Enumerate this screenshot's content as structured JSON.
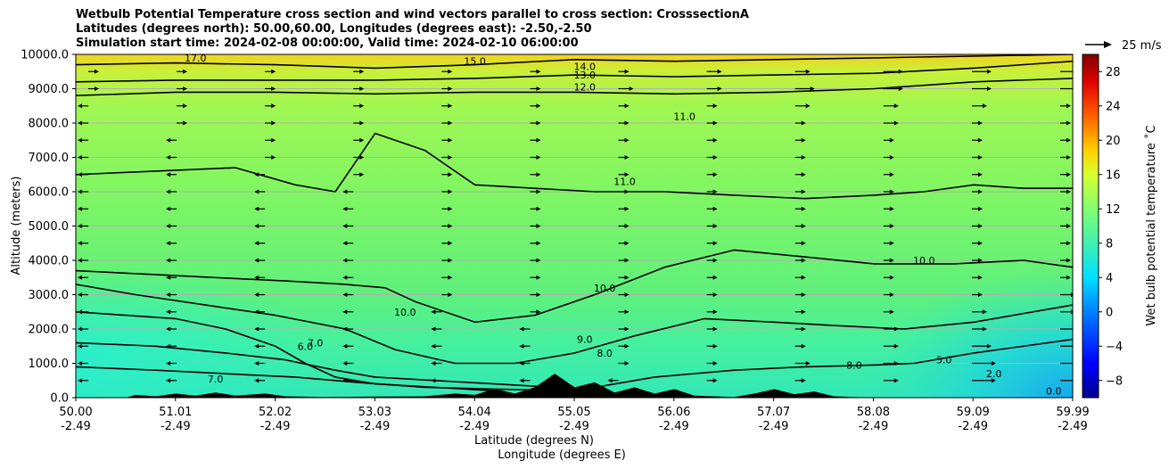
{
  "title": {
    "line1": "Wetbulb Potential Temperature cross section and wind vectors parallel to cross section: CrosssectionA",
    "line2": "Latitudes (degrees north): 50.00,60.00, Longitudes (degrees east): -2.50,-2.50",
    "line3": "Simulation start time: 2024-02-08 00:00:00, Valid time: 2024-02-10 06:00:00"
  },
  "quiver_key": "25 m/s",
  "colors": {
    "grid": "#b0b0b0",
    "contour": "#000000",
    "terrain": "#000000"
  },
  "chart_data": {
    "type": "heatmap",
    "ylabel": "Altitude (meters)",
    "xlabel_line1": "Latitude (degrees N)",
    "xlabel_line2": "Longitude (degrees E)",
    "ylim": [
      0,
      10000
    ],
    "xlim": [
      50.0,
      59.99
    ],
    "y_ticks": [
      "0.0",
      "1000.0",
      "2000.0",
      "3000.0",
      "4000.0",
      "5000.0",
      "6000.0",
      "7000.0",
      "8000.0",
      "9000.0",
      "10000.0"
    ],
    "x_ticks": [
      {
        "lat": "50.00",
        "lon": "-2.49"
      },
      {
        "lat": "51.01",
        "lon": "-2.49"
      },
      {
        "lat": "52.02",
        "lon": "-2.49"
      },
      {
        "lat": "53.03",
        "lon": "-2.49"
      },
      {
        "lat": "54.04",
        "lon": "-2.49"
      },
      {
        "lat": "55.05",
        "lon": "-2.49"
      },
      {
        "lat": "56.06",
        "lon": "-2.49"
      },
      {
        "lat": "57.07",
        "lon": "-2.49"
      },
      {
        "lat": "58.08",
        "lon": "-2.49"
      },
      {
        "lat": "59.09",
        "lon": "-2.49"
      },
      {
        "lat": "59.99",
        "lon": "-2.49"
      }
    ],
    "colorbar": {
      "label": "Wet bulb potential temperature ˚C",
      "range": [
        -10,
        30
      ],
      "ticks": [
        "-8",
        "-4",
        "0",
        "4",
        "8",
        "12",
        "16",
        "20",
        "24",
        "28"
      ]
    },
    "contours": [
      {
        "value": 6.0,
        "points": [
          [
            50.0,
            2500
          ],
          [
            50.5,
            2400
          ],
          [
            51.0,
            2300
          ],
          [
            51.5,
            2000
          ],
          [
            52.0,
            1500
          ],
          [
            52.3,
            1000
          ],
          [
            52.6,
            600
          ],
          [
            53.0,
            400
          ],
          [
            53.6,
            300
          ],
          [
            54.2,
            200
          ]
        ]
      },
      {
        "value": 7.0,
        "points": [
          [
            50.0,
            1600
          ],
          [
            50.8,
            1500
          ],
          [
            51.5,
            1300
          ],
          [
            52.1,
            1100
          ],
          [
            52.6,
            800
          ],
          [
            53.0,
            600
          ],
          [
            53.6,
            500
          ],
          [
            54.2,
            400
          ],
          [
            54.8,
            300
          ]
        ]
      },
      {
        "value": 8.0,
        "points": [
          [
            50.0,
            900
          ],
          [
            50.8,
            800
          ],
          [
            51.5,
            700
          ],
          [
            52.2,
            600
          ],
          [
            52.8,
            450
          ],
          [
            53.5,
            300
          ],
          [
            54.2,
            250
          ],
          [
            55.0,
            200
          ],
          [
            55.8,
            600
          ],
          [
            56.6,
            800
          ],
          [
            57.3,
            900
          ],
          [
            58.0,
            950
          ],
          [
            58.4,
            1000
          ],
          [
            59.0,
            1300
          ],
          [
            59.99,
            1700
          ]
        ]
      },
      {
        "value": 9.0,
        "points": [
          [
            50.0,
            3300
          ],
          [
            50.6,
            3000
          ],
          [
            51.3,
            2700
          ],
          [
            52.0,
            2400
          ],
          [
            52.7,
            2000
          ],
          [
            53.2,
            1400
          ],
          [
            53.8,
            1000
          ],
          [
            54.4,
            1000
          ],
          [
            55.0,
            1300
          ],
          [
            55.6,
            1800
          ],
          [
            56.3,
            2300
          ],
          [
            57.0,
            2200
          ],
          [
            57.6,
            2100
          ],
          [
            58.3,
            2000
          ],
          [
            59.0,
            2200
          ],
          [
            59.99,
            2700
          ]
        ]
      },
      {
        "value": 10.0,
        "points": [
          [
            50.0,
            3700
          ],
          [
            50.7,
            3600
          ],
          [
            51.4,
            3500
          ],
          [
            52.1,
            3400
          ],
          [
            52.7,
            3300
          ],
          [
            53.1,
            3200
          ],
          [
            53.4,
            2800
          ],
          [
            54.0,
            2200
          ],
          [
            54.6,
            2400
          ],
          [
            55.2,
            3000
          ],
          [
            55.9,
            3800
          ],
          [
            56.6,
            4300
          ],
          [
            57.3,
            4100
          ],
          [
            58.0,
            3900
          ],
          [
            58.8,
            3900
          ],
          [
            59.5,
            4000
          ],
          [
            59.99,
            3800
          ]
        ]
      },
      {
        "value": 11.0,
        "points": [
          [
            50.0,
            6500
          ],
          [
            50.8,
            6600
          ],
          [
            51.6,
            6700
          ],
          [
            52.2,
            6200
          ],
          [
            52.6,
            6000
          ],
          [
            53.0,
            7700
          ],
          [
            53.5,
            7200
          ],
          [
            54.0,
            6200
          ],
          [
            54.6,
            6100
          ],
          [
            55.2,
            6000
          ],
          [
            55.9,
            6000
          ],
          [
            56.6,
            5900
          ],
          [
            57.3,
            5800
          ],
          [
            58.0,
            5900
          ],
          [
            58.5,
            6000
          ],
          [
            59.0,
            6200
          ],
          [
            59.5,
            6100
          ],
          [
            59.99,
            6100
          ]
        ]
      },
      {
        "value": 12.0,
        "points": [
          [
            50.0,
            8800
          ],
          [
            51.0,
            8900
          ],
          [
            52.0,
            8900
          ],
          [
            53.0,
            8850
          ],
          [
            54.0,
            8900
          ],
          [
            55.0,
            8900
          ],
          [
            56.0,
            8850
          ],
          [
            57.0,
            8900
          ],
          [
            58.0,
            9000
          ],
          [
            59.0,
            9200
          ],
          [
            59.99,
            9300
          ]
        ]
      },
      {
        "value": 13.0,
        "points": [
          [
            50.0,
            9200
          ],
          [
            51.0,
            9250
          ],
          [
            52.0,
            9250
          ],
          [
            53.0,
            9250
          ],
          [
            54.0,
            9300
          ],
          [
            55.0,
            9400
          ],
          [
            56.0,
            9350
          ],
          [
            57.0,
            9400
          ],
          [
            58.0,
            9450
          ],
          [
            59.0,
            9600
          ],
          [
            59.99,
            9800
          ]
        ]
      },
      {
        "value": 15.0,
        "points": [
          [
            50.0,
            9700
          ],
          [
            51.0,
            9750
          ],
          [
            52.0,
            9700
          ],
          [
            53.0,
            9600
          ],
          [
            54.0,
            9700
          ],
          [
            55.0,
            9850
          ],
          [
            56.0,
            9800
          ],
          [
            57.0,
            9850
          ],
          [
            58.0,
            9900
          ],
          [
            59.0,
            9950
          ],
          [
            59.99,
            10000
          ]
        ]
      }
    ],
    "contour_labels": [
      {
        "text": "17.0",
        "lat": 51.2,
        "alt": 9900
      },
      {
        "text": "15.0",
        "lat": 54.0,
        "alt": 9800
      },
      {
        "text": "14.0",
        "lat": 55.1,
        "alt": 9650
      },
      {
        "text": "13.0",
        "lat": 55.1,
        "alt": 9400
      },
      {
        "text": "12.0",
        "lat": 55.1,
        "alt": 9050
      },
      {
        "text": "11.0",
        "lat": 56.1,
        "alt": 8200
      },
      {
        "text": "11.0",
        "lat": 55.5,
        "alt": 6300
      },
      {
        "text": "10.0",
        "lat": 55.3,
        "alt": 3200
      },
      {
        "text": "10.0",
        "lat": 53.3,
        "alt": 2500
      },
      {
        "text": "10.0",
        "lat": 58.5,
        "alt": 4000
      },
      {
        "text": "9.0",
        "lat": 55.1,
        "alt": 1700
      },
      {
        "text": "8.0",
        "lat": 55.3,
        "alt": 1300
      },
      {
        "text": "8.0",
        "lat": 57.8,
        "alt": 950
      },
      {
        "text": "7.0",
        "lat": 52.4,
        "alt": 1600
      },
      {
        "text": "7.0",
        "lat": 51.4,
        "alt": 550
      },
      {
        "text": "6.0",
        "lat": 52.3,
        "alt": 1500
      },
      {
        "text": "5.0",
        "lat": 58.7,
        "alt": 1100
      },
      {
        "text": "2.0",
        "lat": 59.2,
        "alt": 700
      },
      {
        "text": "0.0",
        "lat": 59.8,
        "alt": 200
      }
    ],
    "wind_rows": [
      {
        "alt": 9500,
        "u": [
          1,
          1,
          1,
          1,
          1,
          1,
          1,
          2,
          2,
          3,
          3,
          3
        ]
      },
      {
        "alt": 9000,
        "u": [
          1,
          1,
          1,
          1,
          1,
          1,
          2,
          2,
          3,
          3,
          3,
          3
        ]
      },
      {
        "alt": 8500,
        "u": [
          -1,
          1,
          1,
          1,
          1,
          1,
          1,
          1,
          2,
          2,
          2,
          1
        ]
      },
      {
        "alt": 8000,
        "u": [
          -1,
          1,
          1,
          1,
          1,
          1,
          1,
          1,
          1,
          2,
          1,
          1
        ]
      },
      {
        "alt": 7500,
        "u": [
          -1,
          -1,
          1,
          1,
          1,
          1,
          1,
          1,
          1,
          1,
          1,
          1
        ]
      },
      {
        "alt": 7000,
        "u": [
          -1,
          -1,
          1,
          1,
          1,
          1,
          1,
          1,
          1,
          1,
          1,
          1
        ]
      },
      {
        "alt": 6500,
        "u": [
          -1,
          -1,
          -1,
          1,
          1,
          1,
          1,
          1,
          1,
          1,
          1,
          1
        ]
      },
      {
        "alt": 6000,
        "u": [
          -1,
          -1,
          -1,
          -1,
          1,
          1,
          1,
          1,
          1,
          1,
          1,
          1
        ]
      },
      {
        "alt": 5500,
        "u": [
          -1,
          -1,
          -1,
          -1,
          1,
          1,
          1,
          1,
          1,
          1,
          1,
          1
        ]
      },
      {
        "alt": 5000,
        "u": [
          -1,
          -1,
          -1,
          -1,
          1,
          1,
          1,
          1,
          1,
          1,
          1,
          1
        ]
      },
      {
        "alt": 4500,
        "u": [
          -1,
          -1,
          -1,
          -1,
          1,
          1,
          1,
          1,
          1,
          1,
          1,
          1
        ]
      },
      {
        "alt": 4000,
        "u": [
          -1,
          -1,
          -1,
          -1,
          1,
          1,
          1,
          1,
          1,
          1,
          1,
          1
        ]
      },
      {
        "alt": 3500,
        "u": [
          -1,
          -1,
          -1,
          -1,
          1,
          1,
          1,
          1,
          1,
          1,
          1,
          1
        ]
      },
      {
        "alt": 3000,
        "u": [
          -1,
          -1,
          -1,
          -1,
          1,
          1,
          1,
          1,
          1,
          1,
          1,
          2
        ]
      },
      {
        "alt": 2500,
        "u": [
          -1,
          -1,
          -1,
          -1,
          -1,
          1,
          1,
          1,
          1,
          1,
          2,
          2
        ]
      },
      {
        "alt": 2000,
        "u": [
          -1,
          -1,
          -1,
          -1,
          -1,
          -1,
          1,
          1,
          1,
          2,
          2,
          3
        ]
      },
      {
        "alt": 1500,
        "u": [
          -1,
          -1,
          -1,
          -1,
          -1,
          -1,
          1,
          1,
          1,
          2,
          3,
          3
        ]
      },
      {
        "alt": 1000,
        "u": [
          -1,
          -1,
          -1,
          -1,
          -1,
          -1,
          1,
          1,
          2,
          2,
          4,
          4
        ]
      },
      {
        "alt": 500,
        "u": [
          -1,
          -1,
          -1,
          -1,
          -1,
          -1,
          -1,
          1,
          1,
          2,
          4,
          4
        ]
      }
    ],
    "terrain": [
      [
        50.0,
        0
      ],
      [
        50.5,
        0
      ],
      [
        50.6,
        80
      ],
      [
        50.8,
        40
      ],
      [
        51.0,
        120
      ],
      [
        51.2,
        60
      ],
      [
        51.4,
        150
      ],
      [
        51.6,
        60
      ],
      [
        51.9,
        120
      ],
      [
        52.1,
        40
      ],
      [
        52.5,
        20
      ],
      [
        53.0,
        30
      ],
      [
        53.5,
        40
      ],
      [
        53.8,
        120
      ],
      [
        54.0,
        80
      ],
      [
        54.2,
        260
      ],
      [
        54.4,
        120
      ],
      [
        54.6,
        300
      ],
      [
        54.8,
        700
      ],
      [
        55.0,
        300
      ],
      [
        55.2,
        450
      ],
      [
        55.4,
        150
      ],
      [
        55.6,
        300
      ],
      [
        55.8,
        120
      ],
      [
        56.0,
        250
      ],
      [
        56.2,
        60
      ],
      [
        56.6,
        20
      ],
      [
        56.8,
        120
      ],
      [
        57.0,
        250
      ],
      [
        57.2,
        100
      ],
      [
        57.4,
        180
      ],
      [
        57.6,
        40
      ],
      [
        58.0,
        0
      ],
      [
        59.99,
        0
      ]
    ]
  }
}
